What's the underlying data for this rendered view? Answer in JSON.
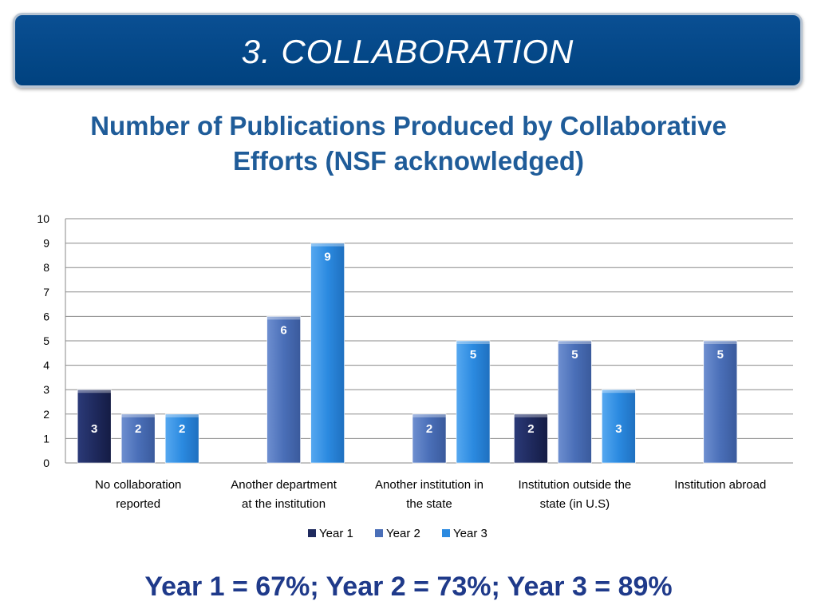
{
  "banner": {
    "title": "3. COLLABORATION"
  },
  "footer": {
    "summary": "Year 1 = 67%; Year 2 = 73%; Year 3 = 89%"
  },
  "chart_data": {
    "type": "bar",
    "title": "Number of Publications Produced by Collaborative Efforts (NSF acknowledged)",
    "categories": [
      [
        "No collaboration",
        "reported"
      ],
      [
        "Another department",
        "at the institution"
      ],
      [
        "Another institution in",
        "the state"
      ],
      [
        "Institution outside the",
        "state (in U.S)"
      ],
      [
        "Institution abroad"
      ]
    ],
    "series": [
      {
        "name": "Year 1",
        "color": "#1f2a5e",
        "values": [
          3,
          null,
          null,
          2,
          null
        ]
      },
      {
        "name": "Year 2",
        "color": "#4a6fb8",
        "values": [
          2,
          6,
          2,
          5,
          5
        ]
      },
      {
        "name": "Year 3",
        "color": "#2b8ae0",
        "values": [
          2,
          9,
          5,
          3,
          null
        ]
      }
    ],
    "ylim": [
      0,
      10
    ],
    "yticks": [
      "0",
      "1",
      "2",
      "3",
      "4",
      "5",
      "6",
      "7",
      "8",
      "9",
      "10"
    ],
    "grid": true,
    "legend": "bottom"
  }
}
